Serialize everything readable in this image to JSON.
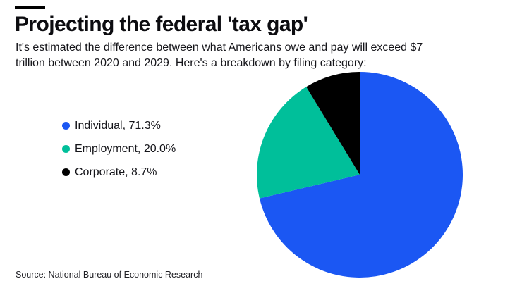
{
  "header": {
    "title": "Projecting the federal 'tax gap'",
    "subtitle_lines": [
      "It's estimated the difference between what Americans owe and pay will exceed $7",
      "trillion between 2020 and 2029. Here's a breakdown by filing category:"
    ]
  },
  "source_note": "Source: National Bureau of Economic Research",
  "colors": {
    "background": "#ffffff",
    "accent_bar": "#000000",
    "title_text": "#0c0c10",
    "body_text": "#15151a",
    "individual_blue": "#1b57f3",
    "employment_green": "#00bf9a",
    "corporate_black": "#000000"
  },
  "chart_data": {
    "type": "pie",
    "title": "Projecting the federal 'tax gap'",
    "start_angle_deg": 0,
    "direction": "clockwise",
    "legend_position": "left",
    "slices": [
      {
        "label": "Individual",
        "value": 71.3,
        "color": "#1b57f3",
        "legend_label": "Individual, 71.3%"
      },
      {
        "label": "Employment",
        "value": 20.0,
        "color": "#00bf9a",
        "legend_label": "Employment, 20.0%"
      },
      {
        "label": "Corporate",
        "value": 8.7,
        "color": "#000000",
        "legend_label": "Corporate, 8.7%"
      }
    ]
  }
}
